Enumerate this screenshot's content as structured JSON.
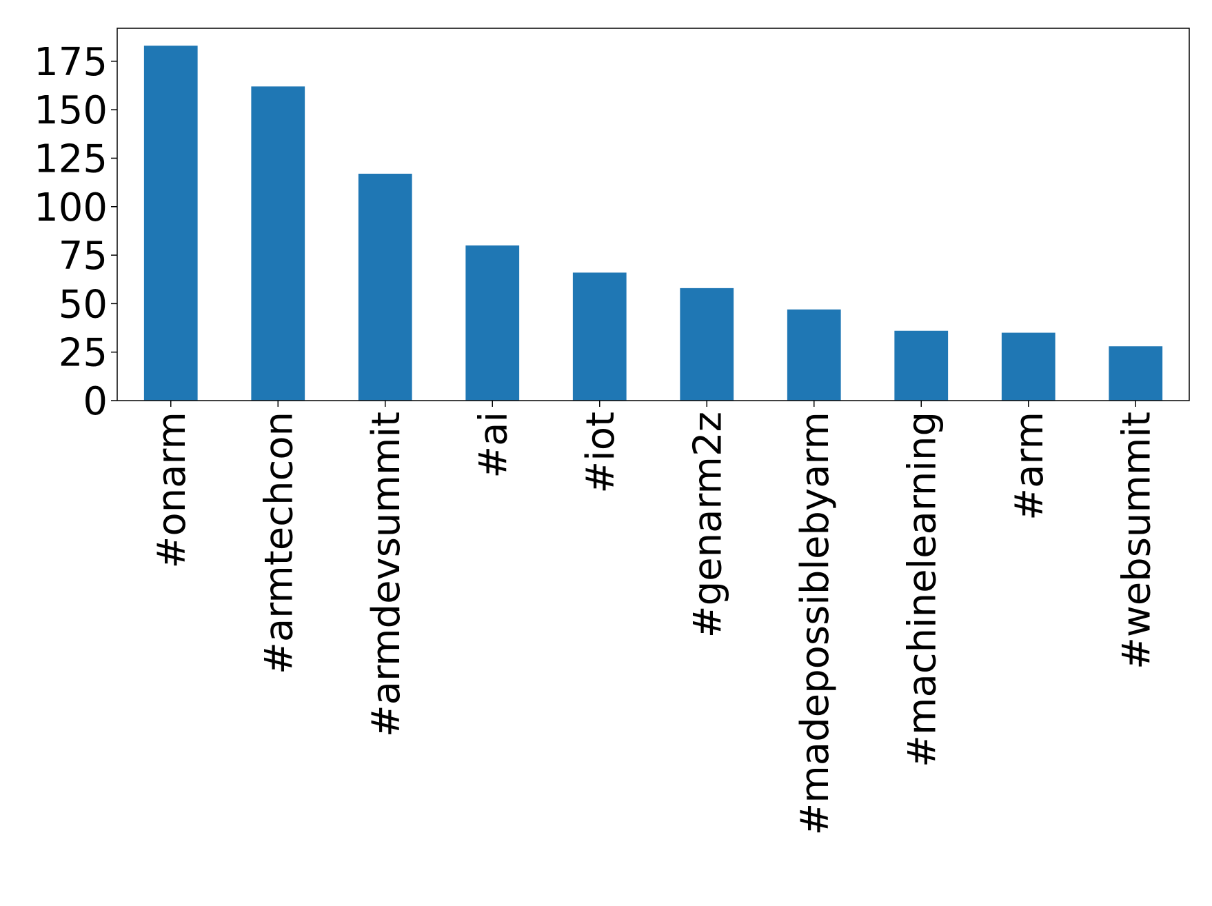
{
  "chart_data": {
    "type": "bar",
    "title": "",
    "xlabel": "",
    "ylabel": "",
    "categories": [
      "#onarm",
      "#armtechcon",
      "#armdevsummit",
      "#ai",
      "#iot",
      "#genarm2z",
      "#madepossiblebyarm",
      "#machinelearning",
      "#arm",
      "#websummit"
    ],
    "values": [
      183,
      162,
      117,
      80,
      66,
      58,
      47,
      36,
      35,
      28
    ],
    "yticks": [
      0,
      25,
      50,
      75,
      100,
      125,
      150,
      175
    ],
    "ylim": [
      0,
      192
    ],
    "grid": false,
    "legend": "none",
    "colors": {
      "bar": "#1f77b4",
      "axis": "#000000"
    }
  }
}
